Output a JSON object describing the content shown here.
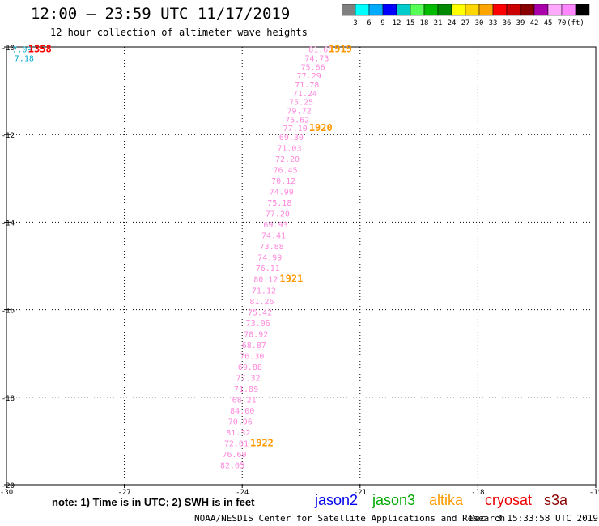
{
  "header": {
    "title": "12:00 – 23:59 UTC 11/17/2019",
    "subtitle": "12 hour collection of altimeter wave heights"
  },
  "colorbar": {
    "colors": [
      "#808080",
      "#00ffff",
      "#00aaff",
      "#0000ff",
      "#00cccc",
      "#55ff55",
      "#00bb00",
      "#008800",
      "#ffff00",
      "#ffd700",
      "#ffa500",
      "#ff0000",
      "#cc0000",
      "#880000",
      "#aa00aa",
      "#ffaaff",
      "#ff88ff",
      "#000000"
    ],
    "labels": [
      "3",
      "6",
      "9",
      "12",
      "15",
      "18",
      "21",
      "24",
      "27",
      "30",
      "33",
      "36",
      "39",
      "42",
      "45",
      "70",
      "(ft)"
    ]
  },
  "chart_data": {
    "type": "scatter",
    "title": "12:00 – 23:59 UTC 11/17/2019",
    "subtitle": "12 hour collection of altimeter wave heights",
    "xlabel": "",
    "ylabel": "",
    "xlim": [
      -30,
      -15
    ],
    "ylim": [
      -20,
      -10
    ],
    "x_ticks": [
      "-30",
      "-27",
      "-24",
      "-21",
      "-18",
      "-15"
    ],
    "y_ticks": [
      "-10",
      "-12",
      "-14",
      "-16",
      "-18",
      "-20"
    ],
    "grid": true,
    "series": [
      {
        "name": "s3a",
        "color": "#ff88dd",
        "points": [
          {
            "x": -22.0,
            "y": -10.05,
            "label": "81.65"
          },
          {
            "x": -22.1,
            "y": -10.25,
            "label": "74.73"
          },
          {
            "x": -22.2,
            "y": -10.45,
            "label": "75.66"
          },
          {
            "x": -22.3,
            "y": -10.65,
            "label": "77.29"
          },
          {
            "x": -22.35,
            "y": -10.85,
            "label": "71.78"
          },
          {
            "x": -22.4,
            "y": -11.05,
            "label": "71.24"
          },
          {
            "x": -22.5,
            "y": -11.25,
            "label": "75.25"
          },
          {
            "x": -22.55,
            "y": -11.45,
            "label": "79.72"
          },
          {
            "x": -22.6,
            "y": -11.65,
            "label": "75.62"
          },
          {
            "x": -22.65,
            "y": -11.85,
            "label": "77.10"
          },
          {
            "x": -22.75,
            "y": -12.05,
            "label": "69.30"
          },
          {
            "x": -22.8,
            "y": -12.3,
            "label": "71.03"
          },
          {
            "x": -22.85,
            "y": -12.55,
            "label": "72.20"
          },
          {
            "x": -22.9,
            "y": -12.8,
            "label": "76.45"
          },
          {
            "x": -22.95,
            "y": -13.05,
            "label": "70.12"
          },
          {
            "x": -23.0,
            "y": -13.3,
            "label": "74.99"
          },
          {
            "x": -23.05,
            "y": -13.55,
            "label": "75.18"
          },
          {
            "x": -23.1,
            "y": -13.8,
            "label": "77.20"
          },
          {
            "x": -23.15,
            "y": -14.05,
            "label": "69.93"
          },
          {
            "x": -23.2,
            "y": -14.3,
            "label": "74.41"
          },
          {
            "x": -23.25,
            "y": -14.55,
            "label": "73.88"
          },
          {
            "x": -23.3,
            "y": -14.8,
            "label": "74.99"
          },
          {
            "x": -23.35,
            "y": -15.05,
            "label": "76.11"
          },
          {
            "x": -23.4,
            "y": -15.3,
            "label": "80.12"
          },
          {
            "x": -23.45,
            "y": -15.55,
            "label": "71.12"
          },
          {
            "x": -23.5,
            "y": -15.8,
            "label": "81.26"
          },
          {
            "x": -23.55,
            "y": -16.05,
            "label": "75.42"
          },
          {
            "x": -23.6,
            "y": -16.3,
            "label": "73.06"
          },
          {
            "x": -23.65,
            "y": -16.55,
            "label": "78.92"
          },
          {
            "x": -23.7,
            "y": -16.8,
            "label": "68.87"
          },
          {
            "x": -23.75,
            "y": -17.05,
            "label": "76.30"
          },
          {
            "x": -23.8,
            "y": -17.3,
            "label": "69.88"
          },
          {
            "x": -23.85,
            "y": -17.55,
            "label": "77.32"
          },
          {
            "x": -23.9,
            "y": -17.8,
            "label": "71.89"
          },
          {
            "x": -23.95,
            "y": -18.05,
            "label": "68.21"
          },
          {
            "x": -24.0,
            "y": -18.3,
            "label": "84.00"
          },
          {
            "x": -24.05,
            "y": -18.55,
            "label": "70.96"
          },
          {
            "x": -24.1,
            "y": -18.8,
            "label": "81.32"
          },
          {
            "x": -24.15,
            "y": -19.05,
            "label": "72.01"
          },
          {
            "x": -24.2,
            "y": -19.3,
            "label": "76.69"
          },
          {
            "x": -24.25,
            "y": -19.55,
            "label": "82.05"
          }
        ]
      },
      {
        "name": "altika",
        "color": "#00aacc",
        "points": [
          {
            "x": -29.6,
            "y": -10.05,
            "label": "7.09"
          },
          {
            "x": -29.55,
            "y": -10.25,
            "label": "7.18"
          }
        ]
      }
    ],
    "time_labels": [
      {
        "text": "1358",
        "x": -29.15,
        "y": -10.05,
        "color": "#ff0000"
      },
      {
        "text": "1919",
        "x": -21.5,
        "y": -10.05,
        "color": "#ff9900"
      },
      {
        "text": "1920",
        "x": -22.0,
        "y": -11.85,
        "color": "#ff9900"
      },
      {
        "text": "1921",
        "x": -22.75,
        "y": -15.3,
        "color": "#ff9900"
      },
      {
        "text": "1922",
        "x": -23.5,
        "y": -19.05,
        "color": "#ff9900"
      }
    ]
  },
  "footer": {
    "note": "note: 1) Time is in UTC; 2) SWH is in feet",
    "satellites": [
      {
        "name": "jason2",
        "color": "#0000ee"
      },
      {
        "name": "jason3",
        "color": "#00aa00"
      },
      {
        "name": "altika",
        "color": "#ff9900"
      },
      {
        "name": "cryosat",
        "color": "#ee0000"
      },
      {
        "name": "s3a",
        "color": "#880000"
      }
    ],
    "credit": "NOAA/NESDIS Center for Satellite Applications and Research",
    "timestamp": "Dec  3 15:33:58 UTC 2019"
  }
}
